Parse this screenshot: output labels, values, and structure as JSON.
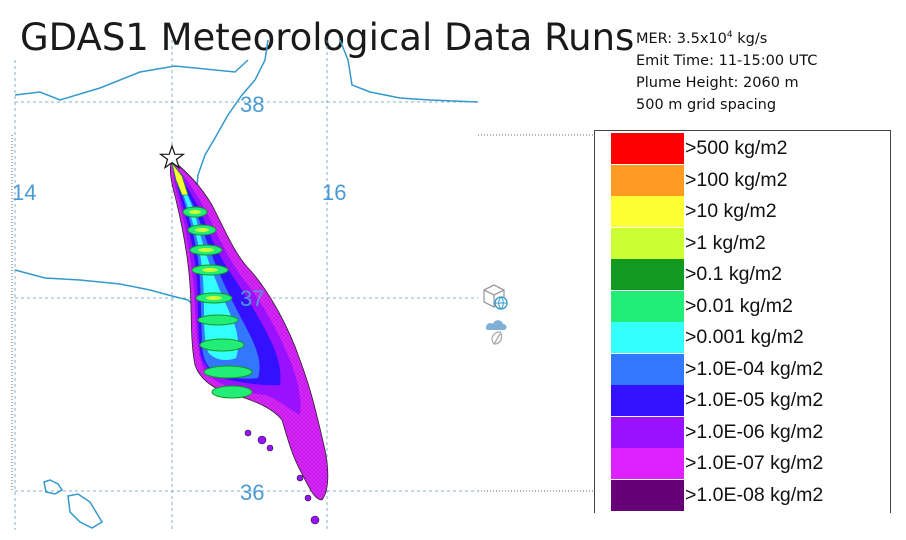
{
  "title": "GDAS1 Meteorological Data Runs",
  "info": {
    "mer_prefix": "MER: 3.5x10",
    "mer_exp": "4",
    "mer_unit": " kg/s",
    "emit_time": "Emit Time: 11-15:00 UTC",
    "plume_height": "Plume Height: 2060 m",
    "grid_spacing": "500 m grid spacing"
  },
  "map_labels": {
    "lat_38": "38",
    "lat_37": "37",
    "lat_36": "36",
    "lon_14": "14",
    "lon_16": "16"
  },
  "legend": [
    {
      "label": ">500 kg/m2",
      "color": "#ff0000"
    },
    {
      "label": ">100 kg/m2",
      "color": "#ff9a22"
    },
    {
      "label": ">10 kg/m2",
      "color": "#ffff33"
    },
    {
      "label": ">1 kg/m2",
      "color": "#ccff33"
    },
    {
      "label": ">0.1 kg/m2",
      "color": "#119922"
    },
    {
      "label": ">0.01 kg/m2",
      "color": "#22ee77"
    },
    {
      "label": ">0.001 kg/m2",
      "color": "#33ffff"
    },
    {
      "label": ">1.0E-04 kg/m2",
      "color": "#3377ff"
    },
    {
      "label": ">1.0E-05 kg/m2",
      "color": "#3311ff"
    },
    {
      "label": ">1.0E-06 kg/m2",
      "color": "#9911ff"
    },
    {
      "label": ">1.0E-07 kg/m2",
      "color": "#dd22ff"
    },
    {
      "label": ">1.0E-08 kg/m2",
      "color": "#660077"
    }
  ],
  "colors": {
    "coastline": "#3399cc",
    "grid": "#6699bb",
    "grid_label": "#4a9ad4"
  },
  "icons": [
    "cube-globe-icon",
    "cloud-leaf-icon"
  ]
}
